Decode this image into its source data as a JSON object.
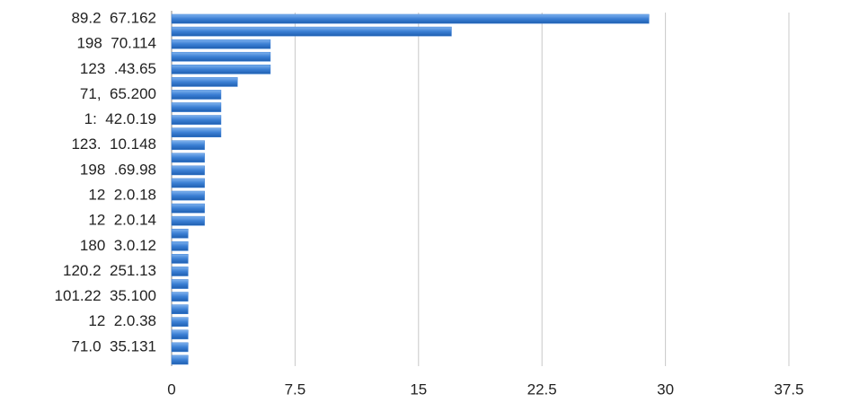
{
  "chart_data": {
    "type": "barh",
    "categories": [
      "89.2  67.162",
      null,
      "198  70.114",
      null,
      "123  .43.65",
      null,
      "71,  65.200",
      null,
      "1:  42.0.19",
      null,
      "123.  10.148",
      null,
      "198  .69.98",
      null,
      "12  2.0.18",
      null,
      "12  2.0.14",
      null,
      "180  3.0.12",
      null,
      "120.2  251.13",
      null,
      "101.22  35.100",
      null,
      "12  2.0.38",
      null,
      "71.0  35.131",
      null
    ],
    "values": [
      29,
      17,
      6,
      6,
      6,
      4,
      3,
      3,
      3,
      3,
      2,
      2,
      2,
      2,
      2,
      2,
      2,
      1,
      1,
      1,
      1,
      1,
      1,
      1,
      1,
      1,
      1,
      1
    ],
    "color": "#3b7fd4",
    "xlim": [
      0,
      37.5
    ],
    "xticks": [
      0,
      7.5,
      15,
      22.5,
      30,
      37.5
    ],
    "grid": true
  }
}
